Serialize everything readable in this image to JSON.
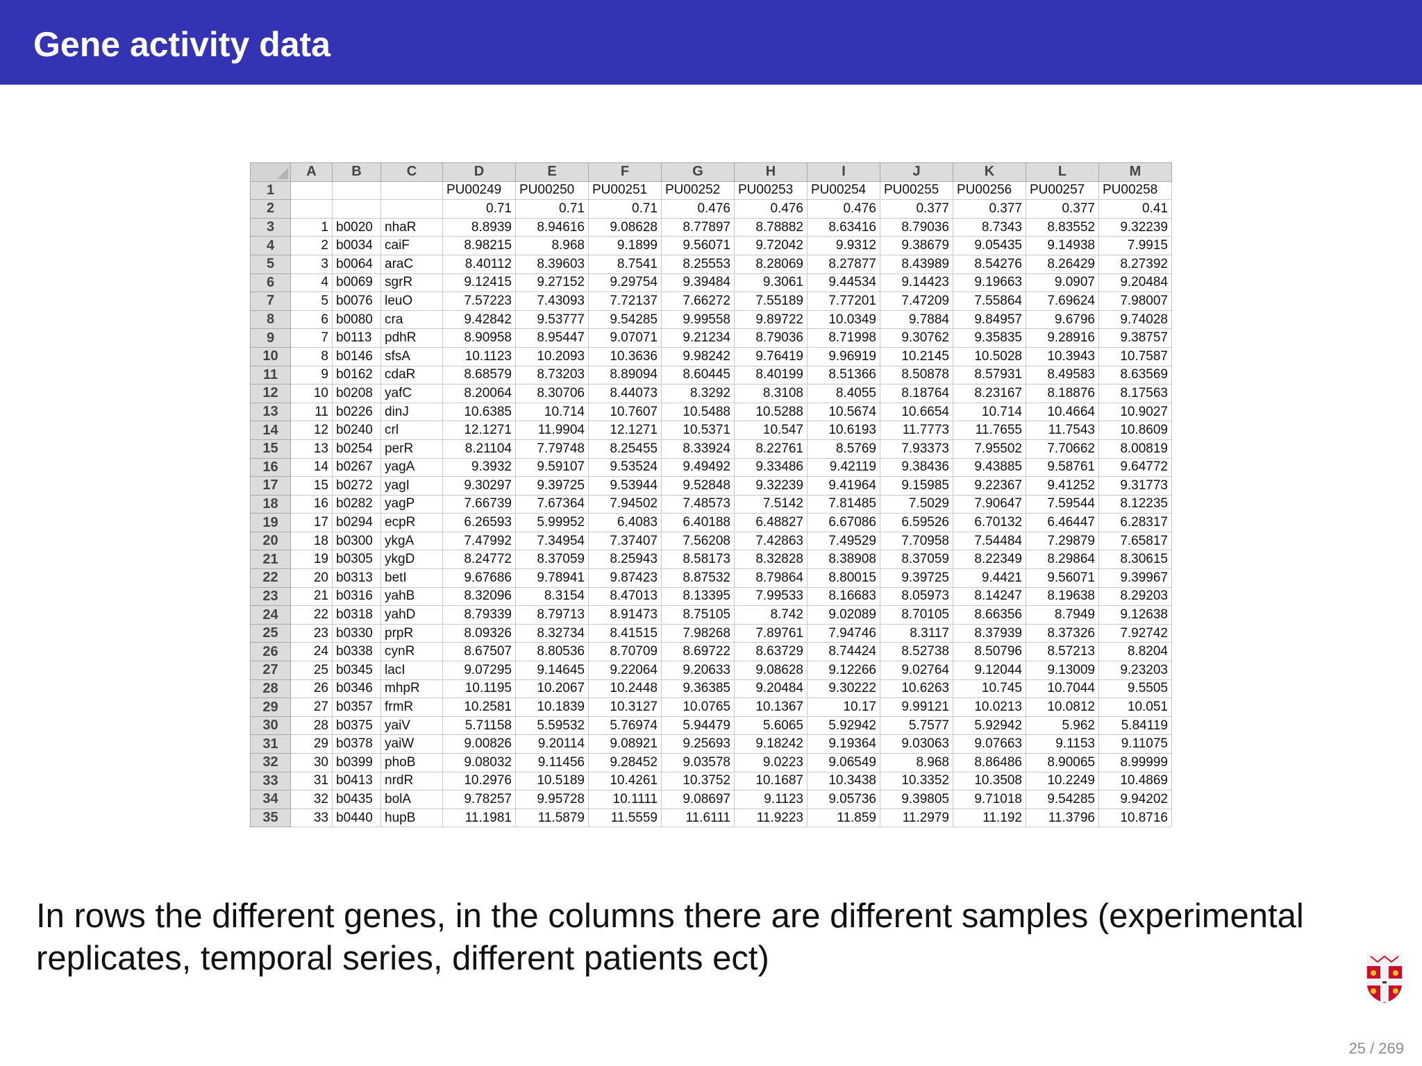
{
  "slide": {
    "title": "Gene activity data",
    "caption": "In rows the different genes, in the columns there are different samples (experimental replicates, temporal series, different patients ect)",
    "page": "25 / 269",
    "logo": "cambridge-crest-icon"
  },
  "spreadsheet": {
    "column_letters": [
      "A",
      "B",
      "C",
      "D",
      "E",
      "F",
      "G",
      "H",
      "I",
      "J",
      "K",
      "L",
      "M"
    ],
    "rows": [
      [
        "",
        "",
        "",
        "PU00249",
        "PU00250",
        "PU00251",
        "PU00252",
        "PU00253",
        "PU00254",
        "PU00255",
        "PU00256",
        "PU00257",
        "PU00258"
      ],
      [
        "",
        "",
        "",
        "0.71",
        "0.71",
        "0.71",
        "0.476",
        "0.476",
        "0.476",
        "0.377",
        "0.377",
        "0.377",
        "0.41"
      ],
      [
        "1",
        "b0020",
        "nhaR",
        "8.8939",
        "8.94616",
        "9.08628",
        "8.77897",
        "8.78882",
        "8.63416",
        "8.79036",
        "8.7343",
        "8.83552",
        "9.32239"
      ],
      [
        "2",
        "b0034",
        "caiF",
        "8.98215",
        "8.968",
        "9.1899",
        "9.56071",
        "9.72042",
        "9.9312",
        "9.38679",
        "9.05435",
        "9.14938",
        "7.9915"
      ],
      [
        "3",
        "b0064",
        "araC",
        "8.40112",
        "8.39603",
        "8.7541",
        "8.25553",
        "8.28069",
        "8.27877",
        "8.43989",
        "8.54276",
        "8.26429",
        "8.27392"
      ],
      [
        "4",
        "b0069",
        "sgrR",
        "9.12415",
        "9.27152",
        "9.29754",
        "9.39484",
        "9.3061",
        "9.44534",
        "9.14423",
        "9.19663",
        "9.0907",
        "9.20484"
      ],
      [
        "5",
        "b0076",
        "leuO",
        "7.57223",
        "7.43093",
        "7.72137",
        "7.66272",
        "7.55189",
        "7.77201",
        "7.47209",
        "7.55864",
        "7.69624",
        "7.98007"
      ],
      [
        "6",
        "b0080",
        "cra",
        "9.42842",
        "9.53777",
        "9.54285",
        "9.99558",
        "9.89722",
        "10.0349",
        "9.7884",
        "9.84957",
        "9.6796",
        "9.74028"
      ],
      [
        "7",
        "b0113",
        "pdhR",
        "8.90958",
        "8.95447",
        "9.07071",
        "9.21234",
        "8.79036",
        "8.71998",
        "9.30762",
        "9.35835",
        "9.28916",
        "9.38757"
      ],
      [
        "8",
        "b0146",
        "sfsA",
        "10.1123",
        "10.2093",
        "10.3636",
        "9.98242",
        "9.76419",
        "9.96919",
        "10.2145",
        "10.5028",
        "10.3943",
        "10.7587"
      ],
      [
        "9",
        "b0162",
        "cdaR",
        "8.68579",
        "8.73203",
        "8.89094",
        "8.60445",
        "8.40199",
        "8.51366",
        "8.50878",
        "8.57931",
        "8.49583",
        "8.63569"
      ],
      [
        "10",
        "b0208",
        "yafC",
        "8.20064",
        "8.30706",
        "8.44073",
        "8.3292",
        "8.3108",
        "8.4055",
        "8.18764",
        "8.23167",
        "8.18876",
        "8.17563"
      ],
      [
        "11",
        "b0226",
        "dinJ",
        "10.6385",
        "10.714",
        "10.7607",
        "10.5488",
        "10.5288",
        "10.5674",
        "10.6654",
        "10.714",
        "10.4664",
        "10.9027"
      ],
      [
        "12",
        "b0240",
        "crl",
        "12.1271",
        "11.9904",
        "12.1271",
        "10.5371",
        "10.547",
        "10.6193",
        "11.7773",
        "11.7655",
        "11.7543",
        "10.8609"
      ],
      [
        "13",
        "b0254",
        "perR",
        "8.21104",
        "7.79748",
        "8.25455",
        "8.33924",
        "8.22761",
        "8.5769",
        "7.93373",
        "7.95502",
        "7.70662",
        "8.00819"
      ],
      [
        "14",
        "b0267",
        "yagA",
        "9.3932",
        "9.59107",
        "9.53524",
        "9.49492",
        "9.33486",
        "9.42119",
        "9.38436",
        "9.43885",
        "9.58761",
        "9.64772"
      ],
      [
        "15",
        "b0272",
        "yagI",
        "9.30297",
        "9.39725",
        "9.53944",
        "9.52848",
        "9.32239",
        "9.41964",
        "9.15985",
        "9.22367",
        "9.41252",
        "9.31773"
      ],
      [
        "16",
        "b0282",
        "yagP",
        "7.66739",
        "7.67364",
        "7.94502",
        "7.48573",
        "7.5142",
        "7.81485",
        "7.5029",
        "7.90647",
        "7.59544",
        "8.12235"
      ],
      [
        "17",
        "b0294",
        "ecpR",
        "6.26593",
        "5.99952",
        "6.4083",
        "6.40188",
        "6.48827",
        "6.67086",
        "6.59526",
        "6.70132",
        "6.46447",
        "6.28317"
      ],
      [
        "18",
        "b0300",
        "ykgA",
        "7.47992",
        "7.34954",
        "7.37407",
        "7.56208",
        "7.42863",
        "7.49529",
        "7.70958",
        "7.54484",
        "7.29879",
        "7.65817"
      ],
      [
        "19",
        "b0305",
        "ykgD",
        "8.24772",
        "8.37059",
        "8.25943",
        "8.58173",
        "8.32828",
        "8.38908",
        "8.37059",
        "8.22349",
        "8.29864",
        "8.30615"
      ],
      [
        "20",
        "b0313",
        "betI",
        "9.67686",
        "9.78941",
        "9.87423",
        "8.87532",
        "8.79864",
        "8.80015",
        "9.39725",
        "9.4421",
        "9.56071",
        "9.39967"
      ],
      [
        "21",
        "b0316",
        "yahB",
        "8.32096",
        "8.3154",
        "8.47013",
        "8.13395",
        "7.99533",
        "8.16683",
        "8.05973",
        "8.14247",
        "8.19638",
        "8.29203"
      ],
      [
        "22",
        "b0318",
        "yahD",
        "8.79339",
        "8.79713",
        "8.91473",
        "8.75105",
        "8.742",
        "9.02089",
        "8.70105",
        "8.66356",
        "8.7949",
        "9.12638"
      ],
      [
        "23",
        "b0330",
        "prpR",
        "8.09326",
        "8.32734",
        "8.41515",
        "7.98268",
        "7.89761",
        "7.94746",
        "8.3117",
        "8.37939",
        "8.37326",
        "7.92742"
      ],
      [
        "24",
        "b0338",
        "cynR",
        "8.67507",
        "8.80536",
        "8.70709",
        "8.69722",
        "8.63729",
        "8.74424",
        "8.52738",
        "8.50796",
        "8.57213",
        "8.8204"
      ],
      [
        "25",
        "b0345",
        "lacI",
        "9.07295",
        "9.14645",
        "9.22064",
        "9.20633",
        "9.08628",
        "9.12266",
        "9.02764",
        "9.12044",
        "9.13009",
        "9.23203"
      ],
      [
        "26",
        "b0346",
        "mhpR",
        "10.1195",
        "10.2067",
        "10.2448",
        "9.36385",
        "9.20484",
        "9.30222",
        "10.6263",
        "10.745",
        "10.7044",
        "9.5505"
      ],
      [
        "27",
        "b0357",
        "frmR",
        "10.2581",
        "10.1839",
        "10.3127",
        "10.0765",
        "10.1367",
        "10.17",
        "9.99121",
        "10.0213",
        "10.0812",
        "10.051"
      ],
      [
        "28",
        "b0375",
        "yaiV",
        "5.71158",
        "5.59532",
        "5.76974",
        "5.94479",
        "5.6065",
        "5.92942",
        "5.7577",
        "5.92942",
        "5.962",
        "5.84119"
      ],
      [
        "29",
        "b0378",
        "yaiW",
        "9.00826",
        "9.20114",
        "9.08921",
        "9.25693",
        "9.18242",
        "9.19364",
        "9.03063",
        "9.07663",
        "9.1153",
        "9.11075"
      ],
      [
        "30",
        "b0399",
        "phoB",
        "9.08032",
        "9.11456",
        "9.28452",
        "9.03578",
        "9.0223",
        "9.06549",
        "8.968",
        "8.86486",
        "8.90065",
        "8.99999"
      ],
      [
        "31",
        "b0413",
        "nrdR",
        "10.2976",
        "10.5189",
        "10.4261",
        "10.3752",
        "10.1687",
        "10.3438",
        "10.3352",
        "10.3508",
        "10.2249",
        "10.4869"
      ],
      [
        "32",
        "b0435",
        "bolA",
        "9.78257",
        "9.95728",
        "10.1111",
        "9.08697",
        "9.1123",
        "9.05736",
        "9.39805",
        "9.71018",
        "9.54285",
        "9.94202"
      ],
      [
        "33",
        "b0440",
        "hupB",
        "11.1981",
        "11.5879",
        "11.5559",
        "11.6111",
        "11.9223",
        "11.859",
        "11.2979",
        "11.192",
        "11.3796",
        "10.8716"
      ]
    ]
  }
}
